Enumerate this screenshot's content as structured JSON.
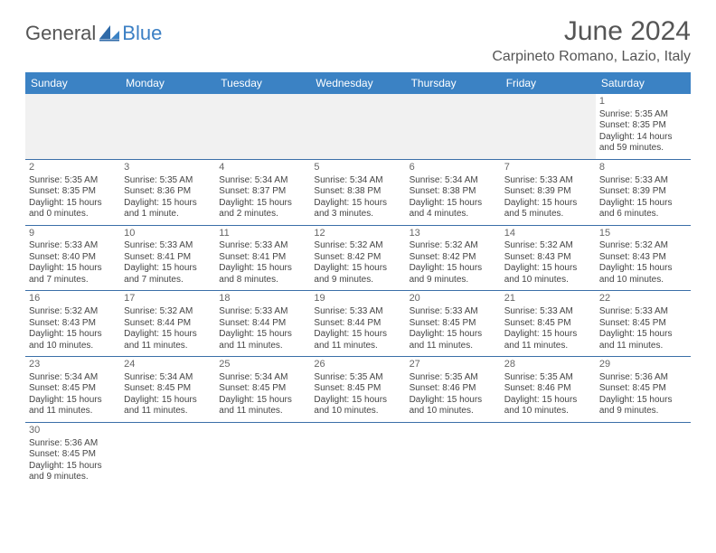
{
  "brand": {
    "part1": "General",
    "part2": "Blue"
  },
  "title": "June 2024",
  "location": "Carpineto Romano, Lazio, Italy",
  "colors": {
    "header_bg": "#3b82c4",
    "header_text": "#ffffff",
    "accent": "#3b7fc4",
    "rule": "#3b6fa8",
    "body_text": "#444444",
    "empty_bg": "#f1f1f1",
    "page_bg": "#ffffff"
  },
  "typography": {
    "title_fontsize": 30,
    "location_fontsize": 16,
    "dayhead_fontsize": 12,
    "cell_fontsize": 10,
    "logo_fontsize": 22
  },
  "day_names": [
    "Sunday",
    "Monday",
    "Tuesday",
    "Wednesday",
    "Thursday",
    "Friday",
    "Saturday"
  ],
  "weeks": [
    [
      null,
      null,
      null,
      null,
      null,
      null,
      {
        "n": "1",
        "sr": "Sunrise: 5:35 AM",
        "ss": "Sunset: 8:35 PM",
        "d1": "Daylight: 14 hours",
        "d2": "and 59 minutes."
      }
    ],
    [
      {
        "n": "2",
        "sr": "Sunrise: 5:35 AM",
        "ss": "Sunset: 8:35 PM",
        "d1": "Daylight: 15 hours",
        "d2": "and 0 minutes."
      },
      {
        "n": "3",
        "sr": "Sunrise: 5:35 AM",
        "ss": "Sunset: 8:36 PM",
        "d1": "Daylight: 15 hours",
        "d2": "and 1 minute."
      },
      {
        "n": "4",
        "sr": "Sunrise: 5:34 AM",
        "ss": "Sunset: 8:37 PM",
        "d1": "Daylight: 15 hours",
        "d2": "and 2 minutes."
      },
      {
        "n": "5",
        "sr": "Sunrise: 5:34 AM",
        "ss": "Sunset: 8:38 PM",
        "d1": "Daylight: 15 hours",
        "d2": "and 3 minutes."
      },
      {
        "n": "6",
        "sr": "Sunrise: 5:34 AM",
        "ss": "Sunset: 8:38 PM",
        "d1": "Daylight: 15 hours",
        "d2": "and 4 minutes."
      },
      {
        "n": "7",
        "sr": "Sunrise: 5:33 AM",
        "ss": "Sunset: 8:39 PM",
        "d1": "Daylight: 15 hours",
        "d2": "and 5 minutes."
      },
      {
        "n": "8",
        "sr": "Sunrise: 5:33 AM",
        "ss": "Sunset: 8:39 PM",
        "d1": "Daylight: 15 hours",
        "d2": "and 6 minutes."
      }
    ],
    [
      {
        "n": "9",
        "sr": "Sunrise: 5:33 AM",
        "ss": "Sunset: 8:40 PM",
        "d1": "Daylight: 15 hours",
        "d2": "and 7 minutes."
      },
      {
        "n": "10",
        "sr": "Sunrise: 5:33 AM",
        "ss": "Sunset: 8:41 PM",
        "d1": "Daylight: 15 hours",
        "d2": "and 7 minutes."
      },
      {
        "n": "11",
        "sr": "Sunrise: 5:33 AM",
        "ss": "Sunset: 8:41 PM",
        "d1": "Daylight: 15 hours",
        "d2": "and 8 minutes."
      },
      {
        "n": "12",
        "sr": "Sunrise: 5:32 AM",
        "ss": "Sunset: 8:42 PM",
        "d1": "Daylight: 15 hours",
        "d2": "and 9 minutes."
      },
      {
        "n": "13",
        "sr": "Sunrise: 5:32 AM",
        "ss": "Sunset: 8:42 PM",
        "d1": "Daylight: 15 hours",
        "d2": "and 9 minutes."
      },
      {
        "n": "14",
        "sr": "Sunrise: 5:32 AM",
        "ss": "Sunset: 8:43 PM",
        "d1": "Daylight: 15 hours",
        "d2": "and 10 minutes."
      },
      {
        "n": "15",
        "sr": "Sunrise: 5:32 AM",
        "ss": "Sunset: 8:43 PM",
        "d1": "Daylight: 15 hours",
        "d2": "and 10 minutes."
      }
    ],
    [
      {
        "n": "16",
        "sr": "Sunrise: 5:32 AM",
        "ss": "Sunset: 8:43 PM",
        "d1": "Daylight: 15 hours",
        "d2": "and 10 minutes."
      },
      {
        "n": "17",
        "sr": "Sunrise: 5:32 AM",
        "ss": "Sunset: 8:44 PM",
        "d1": "Daylight: 15 hours",
        "d2": "and 11 minutes."
      },
      {
        "n": "18",
        "sr": "Sunrise: 5:33 AM",
        "ss": "Sunset: 8:44 PM",
        "d1": "Daylight: 15 hours",
        "d2": "and 11 minutes."
      },
      {
        "n": "19",
        "sr": "Sunrise: 5:33 AM",
        "ss": "Sunset: 8:44 PM",
        "d1": "Daylight: 15 hours",
        "d2": "and 11 minutes."
      },
      {
        "n": "20",
        "sr": "Sunrise: 5:33 AM",
        "ss": "Sunset: 8:45 PM",
        "d1": "Daylight: 15 hours",
        "d2": "and 11 minutes."
      },
      {
        "n": "21",
        "sr": "Sunrise: 5:33 AM",
        "ss": "Sunset: 8:45 PM",
        "d1": "Daylight: 15 hours",
        "d2": "and 11 minutes."
      },
      {
        "n": "22",
        "sr": "Sunrise: 5:33 AM",
        "ss": "Sunset: 8:45 PM",
        "d1": "Daylight: 15 hours",
        "d2": "and 11 minutes."
      }
    ],
    [
      {
        "n": "23",
        "sr": "Sunrise: 5:34 AM",
        "ss": "Sunset: 8:45 PM",
        "d1": "Daylight: 15 hours",
        "d2": "and 11 minutes."
      },
      {
        "n": "24",
        "sr": "Sunrise: 5:34 AM",
        "ss": "Sunset: 8:45 PM",
        "d1": "Daylight: 15 hours",
        "d2": "and 11 minutes."
      },
      {
        "n": "25",
        "sr": "Sunrise: 5:34 AM",
        "ss": "Sunset: 8:45 PM",
        "d1": "Daylight: 15 hours",
        "d2": "and 11 minutes."
      },
      {
        "n": "26",
        "sr": "Sunrise: 5:35 AM",
        "ss": "Sunset: 8:45 PM",
        "d1": "Daylight: 15 hours",
        "d2": "and 10 minutes."
      },
      {
        "n": "27",
        "sr": "Sunrise: 5:35 AM",
        "ss": "Sunset: 8:46 PM",
        "d1": "Daylight: 15 hours",
        "d2": "and 10 minutes."
      },
      {
        "n": "28",
        "sr": "Sunrise: 5:35 AM",
        "ss": "Sunset: 8:46 PM",
        "d1": "Daylight: 15 hours",
        "d2": "and 10 minutes."
      },
      {
        "n": "29",
        "sr": "Sunrise: 5:36 AM",
        "ss": "Sunset: 8:45 PM",
        "d1": "Daylight: 15 hours",
        "d2": "and 9 minutes."
      }
    ],
    [
      {
        "n": "30",
        "sr": "Sunrise: 5:36 AM",
        "ss": "Sunset: 8:45 PM",
        "d1": "Daylight: 15 hours",
        "d2": "and 9 minutes."
      },
      null,
      null,
      null,
      null,
      null,
      null
    ]
  ]
}
